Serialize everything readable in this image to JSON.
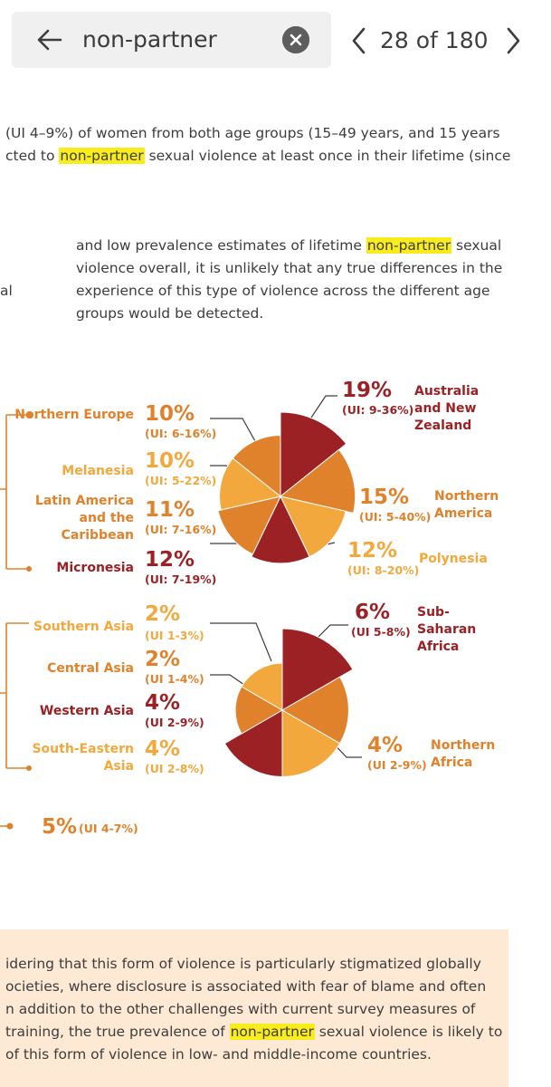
{
  "search": {
    "query": "non-partner",
    "back_icon": "arrow-left-icon",
    "clear_icon": "close-circle-icon",
    "prev_icon": "chevron-left-icon",
    "next_icon": "chevron-right-icon",
    "match_counter": "28 of 180"
  },
  "intro_paragraph": {
    "line1": "(UI 4–9%) of women from both age groups (15–49 years, and 15 years",
    "line2_before": "cted to ",
    "line2_highlight": "non-partner",
    "line2_after": " sexual violence at least once in their lifetime (since"
  },
  "body_paragraph": {
    "line1_before": "and low prevalence estimates of lifetime ",
    "line1_highlight": "non-partner",
    "line1_after": " sexual",
    "line2": "violence overall, it is unlikely that any true differences in the",
    "line3": "experience of this type of violence across the different age",
    "line4": "groups would be detected.",
    "left_fragment": "al"
  },
  "colors": {
    "dark_red": "#9b2125",
    "orange": "#e0822b",
    "light_orange": "#f2a83d",
    "highlight": "#f8ec1c",
    "callout_bg": "#fde9d4"
  },
  "chart_data": [
    {
      "type": "pie",
      "title": "",
      "slices": [
        {
          "region": "Australia and New Zealand",
          "value": 19,
          "percent_label": "19%",
          "ui": "(UI: 9-36%)",
          "color": "dark_red"
        },
        {
          "region": "Northern America",
          "value": 15,
          "percent_label": "15%",
          "ui": "(UI: 5-40%)",
          "color": "orange"
        },
        {
          "region": "Polynesia",
          "value": 12,
          "percent_label": "12%",
          "ui": "(UI: 8-20%)",
          "color": "light_orange"
        },
        {
          "region": "Micronesia",
          "value": 12,
          "percent_label": "12%",
          "ui": "(UI: 7-19%)",
          "color": "dark_red"
        },
        {
          "region": "Latin America and the Caribbean",
          "value": 11,
          "percent_label": "11%",
          "ui": "(UI: 7-16%)",
          "color": "orange"
        },
        {
          "region": "Melanesia",
          "value": 10,
          "percent_label": "10%",
          "ui": "(UI: 5-22%)",
          "color": "light_orange"
        },
        {
          "region": "Northern Europe",
          "value": 10,
          "percent_label": "10%",
          "ui": "(UI: 6-16%)",
          "color": "orange"
        }
      ]
    },
    {
      "type": "pie",
      "title": "",
      "slices": [
        {
          "region": "Sub-Saharan Africa",
          "value": 6,
          "percent_label": "6%",
          "ui": "(UI 5-8%)",
          "color": "dark_red"
        },
        {
          "region": "Northern Africa",
          "value": 4,
          "percent_label": "4%",
          "ui": "(UI 2-9%)",
          "color": "orange"
        },
        {
          "region": "South-Eastern Asia",
          "value": 4,
          "percent_label": "4%",
          "ui": "(UI 2-8%)",
          "color": "light_orange"
        },
        {
          "region": "Western Asia",
          "value": 4,
          "percent_label": "4%",
          "ui": "(UI 2-9%)",
          "color": "dark_red"
        },
        {
          "region": "Central Asia",
          "value": 2,
          "percent_label": "2%",
          "ui": "(UI 1-4%)",
          "color": "orange"
        },
        {
          "region": "Southern Asia",
          "value": 2,
          "percent_label": "2%",
          "ui": "(UI 1-3%)",
          "color": "light_orange"
        }
      ]
    }
  ],
  "bottom_value": {
    "percent": "5%",
    "ui": "(UI 4-7%)"
  },
  "callout": {
    "line1": "idering that this form of violence is particularly stigmatized globally",
    "line2": "ocieties, where disclosure is associated with fear of blame and often",
    "line3": "n addition to the other challenges with current survey measures of",
    "line4_before": "training, the true prevalence of ",
    "line4_highlight": "non-partner",
    "line4_after": " sexual violence is likely to",
    "line5": "of this form of violence in low- and middle-income countries."
  }
}
